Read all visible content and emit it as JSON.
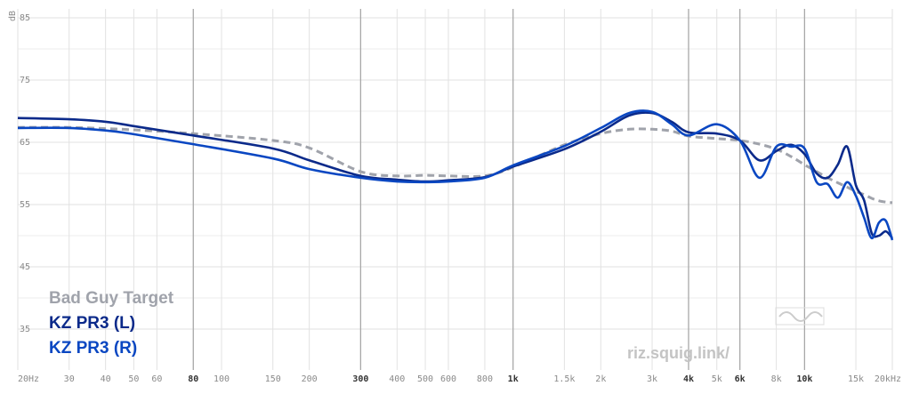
{
  "chart_data": {
    "type": "line",
    "ylabel": "dB",
    "xscale": "log",
    "watermark": "riz.squig.link/",
    "x": [
      20,
      30,
      40,
      50,
      80,
      150,
      200,
      300,
      400,
      500,
      600,
      800,
      1000,
      1500,
      2000,
      2500,
      3000,
      3500,
      4000,
      5000,
      6000,
      7000,
      8000,
      9000,
      10000,
      11000,
      12000,
      13000,
      14000,
      15000,
      16000,
      17000,
      18000,
      19000,
      20000
    ],
    "series": [
      {
        "name": "Bad Guy Target",
        "color": "#a0a3ab",
        "dashed": true,
        "values": [
          67.4,
          67.4,
          67.2,
          67,
          66.4,
          65.3,
          64.1,
          60.3,
          59.6,
          59.7,
          59.6,
          59.6,
          61,
          64.6,
          66.4,
          67.1,
          67.1,
          66.8,
          66,
          65.6,
          65.3,
          64.7,
          63.9,
          62.7,
          61.4,
          60.3,
          59.3,
          58.5,
          57.8,
          57.1,
          56.6,
          56,
          55.6,
          55.4,
          55.3
        ]
      },
      {
        "name": "KZ PR3 (L)",
        "color": "#0b2a8a",
        "dashed": false,
        "values": [
          68.9,
          68.7,
          68.3,
          67.6,
          66.1,
          64,
          62.1,
          59.6,
          59,
          58.7,
          58.9,
          59.4,
          61.1,
          63.9,
          66.7,
          69.3,
          69.7,
          68.3,
          66.6,
          66.4,
          65.3,
          62.1,
          63.6,
          64.6,
          63.1,
          60,
          59.3,
          61.4,
          64.3,
          58.1,
          55.7,
          50.4,
          50,
          50.7,
          49.6
        ]
      },
      {
        "name": "KZ PR3 (R)",
        "color": "#0a47c2",
        "dashed": false,
        "values": [
          67.3,
          67.3,
          66.9,
          66.3,
          64.7,
          62.4,
          60.7,
          59.3,
          58.7,
          58.6,
          58.7,
          59.3,
          61.3,
          64.4,
          67.3,
          69.7,
          69.9,
          67.9,
          66.1,
          67.9,
          65.3,
          59.3,
          64.3,
          64.3,
          64,
          58.6,
          58.3,
          56.1,
          58.6,
          56.4,
          52.9,
          49.6,
          52.1,
          52.4,
          49.3
        ]
      }
    ],
    "xlim": [
      20,
      20000
    ],
    "xticks": [
      {
        "value": 20,
        "label": "20Hz"
      },
      30,
      40,
      50,
      60,
      80,
      100,
      150,
      200,
      300,
      400,
      500,
      600,
      800,
      {
        "value": 1000,
        "label": "1k"
      },
      {
        "value": 1500,
        "label": "1.5k"
      },
      {
        "value": 2000,
        "label": "2k"
      },
      {
        "value": 3000,
        "label": "3k"
      },
      {
        "value": 4000,
        "label": "4k"
      },
      {
        "value": 5000,
        "label": "5k"
      },
      {
        "value": 6000,
        "label": "6k"
      },
      {
        "value": 8000,
        "label": "8k"
      },
      {
        "value": 10000,
        "label": "10k"
      },
      {
        "value": 15000,
        "label": "15k"
      },
      {
        "value": 20000,
        "label": "20kHz"
      }
    ],
    "xmajor": [
      80,
      300,
      1000,
      4000,
      6000,
      10000
    ],
    "ylim": [
      29,
      86
    ],
    "yticks": [
      35,
      45,
      55,
      65,
      75,
      85
    ],
    "yminor": [
      40,
      50,
      60,
      70,
      80
    ],
    "grid": true
  }
}
